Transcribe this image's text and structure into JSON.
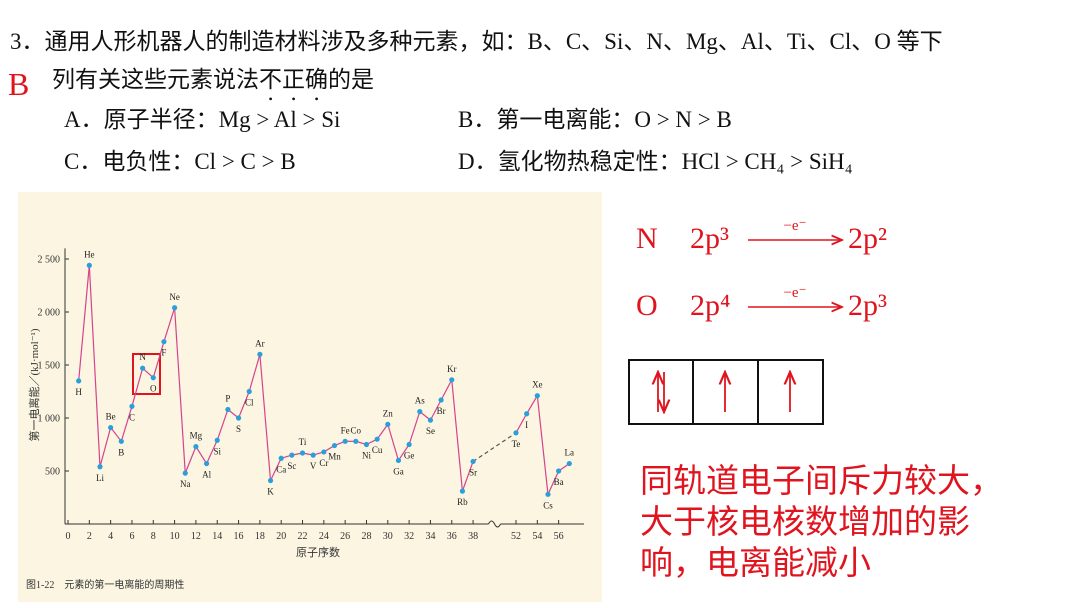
{
  "question": {
    "number": "3．",
    "line1": "通用人形机器人的制造材料涉及多种元素，如：B、C、Si、N、Mg、Al、Ti、Cl、O 等下",
    "line2_before": "列有关这些元素说法",
    "emphasis": "不正确",
    "line2_after": "的是"
  },
  "options": [
    {
      "label": "A．",
      "text": "原子半径：Mg > Al > Si"
    },
    {
      "label": "B．",
      "text": "第一电离能：O > N > B"
    },
    {
      "label": "C．",
      "text": "电负性：Cl > C > B"
    },
    {
      "label": "D．",
      "text": "氢化物热稳定性：HCl > CH₄ > SiH₄"
    }
  ],
  "answer": "B",
  "chart_data": {
    "type": "line",
    "caption": "图1-22　元素的第一电离能的周期性",
    "x_label": "原子序数",
    "y_label": "第一电离能／(kJ·mol⁻¹)",
    "x": [
      1,
      2,
      3,
      4,
      5,
      6,
      7,
      8,
      9,
      10,
      11,
      12,
      13,
      14,
      15,
      16,
      17,
      18,
      19,
      20,
      21,
      22,
      23,
      24,
      25,
      26,
      27,
      28,
      29,
      30,
      31,
      32,
      33,
      34,
      35,
      36,
      37,
      38,
      52,
      53,
      54,
      55,
      56,
      57
    ],
    "labels": [
      "H",
      "He",
      "Li",
      "Be",
      "B",
      "C",
      "N",
      "O",
      "F",
      "Ne",
      "Na",
      "Mg",
      "Al",
      "Si",
      "P",
      "S",
      "Cl",
      "Ar",
      "K",
      "Ca",
      "Sc",
      "Ti",
      "V",
      "Cr",
      "Mn",
      "Fe",
      "Co",
      "Ni",
      "Cu",
      "Zn",
      "Ga",
      "Ge",
      "As",
      "Se",
      "Br",
      "Kr",
      "Rb",
      "Sr",
      "Te",
      "I",
      "Xe",
      "Cs",
      "Ba",
      "La"
    ],
    "values": [
      1350,
      2440,
      540,
      910,
      780,
      1110,
      1470,
      1380,
      1720,
      2040,
      480,
      730,
      570,
      790,
      1080,
      1000,
      1250,
      1600,
      410,
      620,
      650,
      670,
      650,
      680,
      740,
      780,
      780,
      750,
      800,
      940,
      600,
      750,
      1060,
      980,
      1170,
      1360,
      310,
      590,
      860,
      1040,
      1210,
      280,
      500,
      570
    ],
    "line_color": "#d6428e",
    "marker_color": "#2b9fd9",
    "xlim": [
      0,
      58
    ],
    "x_break": [
      39,
      51
    ],
    "xticks": [
      0,
      2,
      4,
      6,
      8,
      10,
      12,
      14,
      16,
      18,
      20,
      22,
      24,
      26,
      28,
      30,
      32,
      34,
      36,
      38,
      52,
      54,
      56
    ],
    "ylim": [
      0,
      2600
    ],
    "yticks": [
      {
        "value": 500,
        "label": "500"
      },
      {
        "value": 1000,
        "label": "1 000"
      },
      {
        "value": 1500,
        "label": "1 500"
      },
      {
        "value": 2000,
        "label": "2 000"
      },
      {
        "value": 2500,
        "label": "2 500"
      }
    ]
  },
  "annotation": {
    "rows": [
      {
        "element": "N",
        "from": "2p³",
        "arrow": "−e⁻",
        "to": "2p²"
      },
      {
        "element": "O",
        "from": "2p⁴",
        "arrow": "−e⁻",
        "to": "2p³"
      }
    ],
    "conclusion": [
      "同轨道电子间斥力较大，",
      "大于核电核数增加的影",
      "响，电离能减小"
    ]
  }
}
